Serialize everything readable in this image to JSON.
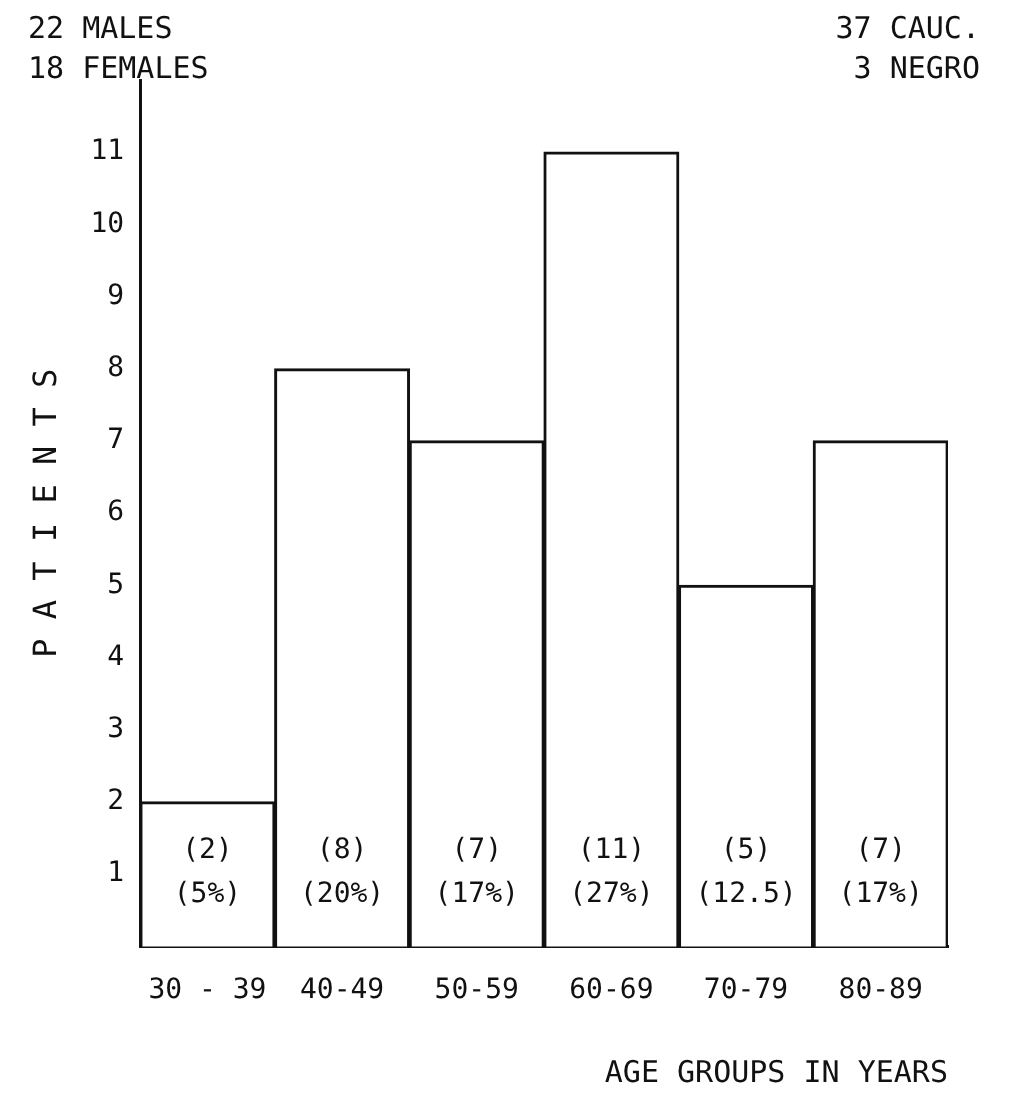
{
  "chart_data": {
    "type": "bar",
    "xlabel": "AGE GROUPS IN YEARS",
    "ylabel": "P A T I E N T S",
    "categories": [
      "30 - 39",
      "40-49",
      "50-59",
      "60-69",
      "70-79",
      "80-89"
    ],
    "values": [
      2,
      8,
      7,
      11,
      5,
      7
    ],
    "value_labels": [
      "(2)\n(5%)",
      "(8)\n(20%)",
      "(7)\n(17%)",
      "(11)\n(27%)",
      "(5)\n(12.5)",
      "(7)\n(17%)"
    ],
    "color": "#ffffff",
    "ylim": [
      0,
      12
    ],
    "yticks": [
      1,
      2,
      3,
      4,
      5,
      6,
      7,
      8,
      9,
      10,
      11
    ],
    "grid": false,
    "legend": false,
    "annotations": [
      "22 MALES\n18 FEMALES",
      "37 CAUC.\n3 NEGRO"
    ]
  }
}
